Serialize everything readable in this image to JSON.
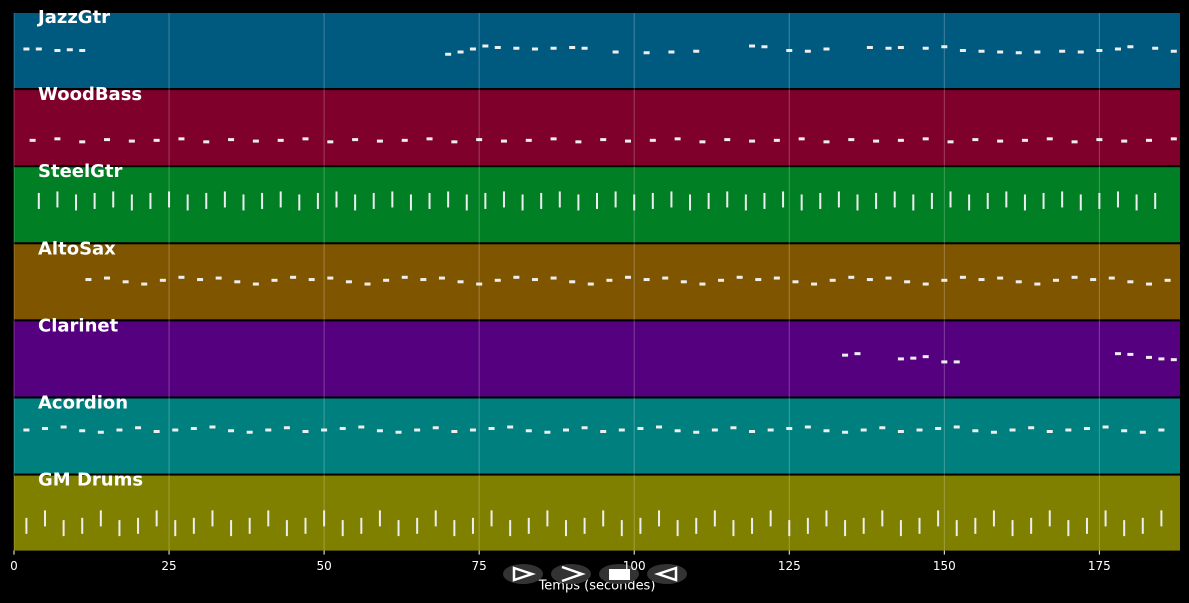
{
  "chart_data": {
    "type": "pianoroll",
    "xlabel": "Temps (secondes)",
    "xlim": [
      0,
      188
    ],
    "xticks": [
      0,
      25,
      50,
      75,
      100,
      125,
      150,
      175
    ],
    "grid": true,
    "tracks": [
      {
        "name": "JazzGtr",
        "color": "#005a80",
        "mark": "dash",
        "ylim": [
          0,
          100
        ],
        "x": [
          2,
          4,
          7,
          9,
          11,
          70,
          72,
          74,
          76,
          78,
          81,
          84,
          87,
          90,
          92,
          97,
          102,
          106,
          110,
          119,
          121,
          125,
          128,
          131,
          138,
          141,
          143,
          147,
          150,
          153,
          156,
          159,
          162,
          165,
          169,
          172,
          175,
          178,
          180,
          184,
          187
        ],
        "values": [
          52,
          52,
          50,
          51,
          50,
          45,
          48,
          52,
          56,
          54,
          53,
          52,
          53,
          54,
          53,
          48,
          47,
          48,
          49,
          56,
          55,
          50,
          49,
          52,
          54,
          53,
          54,
          53,
          55,
          50,
          49,
          48,
          47,
          48,
          49,
          48,
          50,
          52,
          55,
          53,
          49
        ]
      },
      {
        "name": "WoodBass",
        "color": "#7f002a",
        "mark": "dash",
        "ylim": [
          0,
          100
        ],
        "x": [
          3,
          7,
          11,
          15,
          19,
          23,
          27,
          31,
          35,
          39,
          43,
          47,
          51,
          55,
          59,
          63,
          67,
          71,
          75,
          79,
          83,
          87,
          91,
          95,
          99,
          103,
          107,
          111,
          115,
          119,
          123,
          127,
          131,
          135,
          139,
          143,
          147,
          151,
          155,
          159,
          163,
          167,
          171,
          175,
          179,
          183,
          187
        ],
        "values": [
          33,
          35,
          31,
          34,
          32,
          33,
          35,
          31,
          34,
          32,
          33,
          35,
          31,
          34,
          32,
          33,
          35,
          31,
          34,
          32,
          33,
          35,
          31,
          34,
          32,
          33,
          35,
          31,
          34,
          32,
          33,
          35,
          31,
          34,
          32,
          33,
          35,
          31,
          34,
          32,
          33,
          35,
          31,
          34,
          32,
          33,
          35
        ]
      },
      {
        "name": "SteelGtr",
        "color": "#007f24",
        "mark": "tick",
        "ylim": [
          0,
          100
        ],
        "x": [
          4,
          7,
          10,
          13,
          16,
          19,
          22,
          25,
          28,
          31,
          34,
          37,
          40,
          43,
          46,
          49,
          52,
          55,
          58,
          61,
          64,
          67,
          70,
          73,
          76,
          79,
          82,
          85,
          88,
          91,
          94,
          97,
          100,
          103,
          106,
          109,
          112,
          115,
          118,
          121,
          124,
          127,
          130,
          133,
          136,
          139,
          142,
          145,
          148,
          151,
          154,
          157,
          160,
          163,
          166,
          169,
          172,
          175,
          178,
          181,
          184
        ],
        "values": [
          55,
          57,
          53,
          55,
          57,
          53,
          55,
          57,
          53,
          55,
          57,
          53,
          55,
          57,
          53,
          55,
          57,
          53,
          55,
          57,
          53,
          55,
          57,
          53,
          55,
          57,
          53,
          55,
          57,
          53,
          55,
          57,
          53,
          55,
          57,
          53,
          55,
          57,
          53,
          55,
          57,
          53,
          55,
          57,
          53,
          55,
          57,
          53,
          55,
          57,
          53,
          55,
          57,
          53,
          55,
          57,
          53,
          55,
          57,
          53,
          55
        ]
      },
      {
        "name": "AltoSax",
        "color": "#7f5500",
        "mark": "dash",
        "ylim": [
          0,
          100
        ],
        "x": [
          12,
          15,
          18,
          21,
          24,
          27,
          30,
          33,
          36,
          39,
          42,
          45,
          48,
          51,
          54,
          57,
          60,
          63,
          66,
          69,
          72,
          75,
          78,
          81,
          84,
          87,
          90,
          93,
          96,
          99,
          102,
          105,
          108,
          111,
          114,
          117,
          120,
          123,
          126,
          129,
          132,
          135,
          138,
          141,
          144,
          147,
          150,
          153,
          156,
          159,
          162,
          165,
          168,
          171,
          174,
          177,
          180,
          183,
          186
        ],
        "values": [
          53,
          55,
          50,
          47,
          52,
          56,
          53,
          55,
          50,
          47,
          52,
          56,
          53,
          55,
          50,
          47,
          52,
          56,
          53,
          55,
          50,
          47,
          52,
          56,
          53,
          55,
          50,
          47,
          52,
          56,
          53,
          55,
          50,
          47,
          52,
          56,
          53,
          55,
          50,
          47,
          52,
          56,
          53,
          55,
          50,
          47,
          52,
          56,
          53,
          55,
          50,
          47,
          52,
          56,
          53,
          55,
          50,
          47,
          52
        ]
      },
      {
        "name": "Clarinet",
        "color": "#55007f",
        "mark": "dash",
        "ylim": [
          0,
          100
        ],
        "x": [
          134,
          136,
          143,
          145,
          147,
          150,
          152,
          178,
          180,
          183,
          185,
          187
        ],
        "values": [
          55,
          57,
          50,
          51,
          53,
          46,
          46,
          57,
          56,
          52,
          50,
          49
        ]
      },
      {
        "name": "Acordion",
        "color": "#007f7f",
        "mark": "dash",
        "ylim": [
          0,
          100
        ],
        "x": [
          2,
          5,
          8,
          11,
          14,
          17,
          20,
          23,
          26,
          29,
          32,
          35,
          38,
          41,
          44,
          47,
          50,
          53,
          56,
          59,
          62,
          65,
          68,
          71,
          74,
          77,
          80,
          83,
          86,
          89,
          92,
          95,
          98,
          101,
          104,
          107,
          110,
          113,
          116,
          119,
          122,
          125,
          128,
          131,
          134,
          137,
          140,
          143,
          146,
          149,
          152,
          155,
          158,
          161,
          164,
          167,
          170,
          173,
          176,
          179,
          182,
          185
        ],
        "values": [
          58,
          60,
          62,
          57,
          55,
          58,
          61,
          56,
          58,
          60,
          62,
          57,
          55,
          58,
          61,
          56,
          58,
          60,
          62,
          57,
          55,
          58,
          61,
          56,
          58,
          60,
          62,
          57,
          55,
          58,
          61,
          56,
          58,
          60,
          62,
          57,
          55,
          58,
          61,
          56,
          58,
          60,
          62,
          57,
          55,
          58,
          61,
          56,
          58,
          60,
          62,
          57,
          55,
          58,
          61,
          56,
          58,
          60,
          62,
          57,
          55,
          58
        ]
      },
      {
        "name": "GM Drums",
        "color": "#7f7f00",
        "mark": "tick",
        "ylim": [
          0,
          100
        ],
        "x": [
          2,
          5,
          8,
          11,
          14,
          17,
          20,
          23,
          26,
          29,
          32,
          35,
          38,
          41,
          44,
          47,
          50,
          53,
          56,
          59,
          62,
          65,
          68,
          71,
          74,
          77,
          80,
          83,
          86,
          89,
          92,
          95,
          98,
          101,
          104,
          107,
          110,
          113,
          116,
          119,
          122,
          125,
          128,
          131,
          134,
          137,
          140,
          143,
          146,
          149,
          152,
          155,
          158,
          161,
          164,
          167,
          170,
          173,
          176,
          179,
          182,
          185
        ],
        "values": [
          33,
          43,
          30,
          33,
          43,
          30,
          33,
          43,
          30,
          33,
          43,
          30,
          33,
          43,
          30,
          33,
          43,
          30,
          33,
          43,
          30,
          33,
          43,
          30,
          33,
          43,
          30,
          33,
          43,
          30,
          33,
          43,
          30,
          33,
          43,
          30,
          33,
          43,
          30,
          33,
          43,
          30,
          33,
          43,
          30,
          33,
          43,
          30,
          33,
          43,
          30,
          33,
          43,
          30,
          33,
          43,
          30,
          33,
          43,
          30,
          33,
          43
        ]
      }
    ]
  }
}
